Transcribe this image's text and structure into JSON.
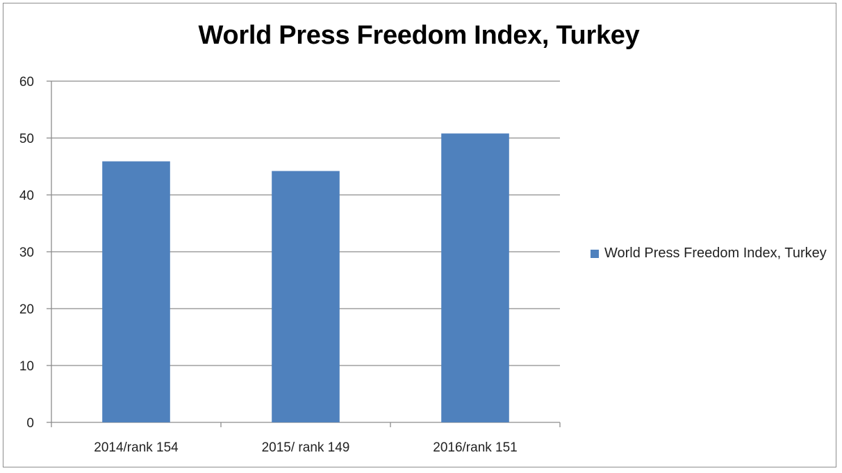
{
  "chart_data": {
    "type": "bar",
    "title": "World Press Freedom Index, Turkey",
    "categories": [
      "2014/rank 154",
      "2015/ rank 149",
      "2016/rank 151"
    ],
    "series": [
      {
        "name": "World Press Freedom Index, Turkey",
        "values": [
          45.9,
          44.2,
          50.8
        ],
        "color": "#4f81bd"
      }
    ],
    "ylim": [
      0,
      60
    ],
    "yticks": [
      0,
      10,
      20,
      30,
      40,
      50,
      60
    ],
    "grid": true,
    "legend": "right"
  }
}
